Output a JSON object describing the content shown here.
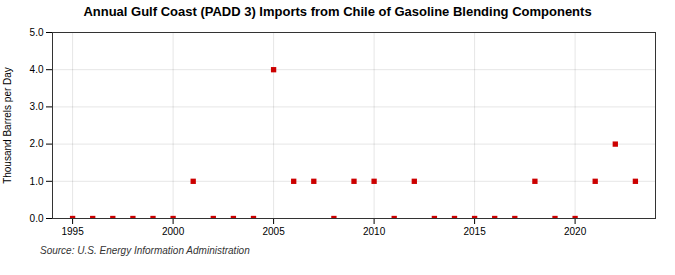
{
  "chart_data": {
    "type": "scatter",
    "title": "Annual Gulf Coast (PADD 3) Imports from Chile of Gasoline Blending Components",
    "ylabel": "Thousand Barrels per Day",
    "source": "Source: U.S. Energy Information Administration",
    "x": [
      1995,
      1996,
      1997,
      1998,
      1999,
      2000,
      2001,
      2002,
      2003,
      2004,
      2005,
      2006,
      2007,
      2008,
      2009,
      2010,
      2011,
      2012,
      2013,
      2014,
      2015,
      2016,
      2017,
      2018,
      2019,
      2020,
      2021,
      2022,
      2023
    ],
    "values": [
      0.0,
      0.0,
      0.0,
      0.0,
      0.0,
      0.0,
      1.0,
      0.0,
      0.0,
      0.0,
      4.0,
      1.0,
      1.0,
      0.0,
      1.0,
      1.0,
      0.0,
      1.0,
      0.0,
      0.0,
      0.0,
      0.0,
      0.0,
      1.0,
      0.0,
      0.0,
      1.0,
      2.0,
      1.0
    ],
    "color": "#cc0000",
    "marker": "square",
    "xlim": [
      1994,
      2024
    ],
    "ylim": [
      0.0,
      5.0
    ],
    "xticks": [
      1995,
      2000,
      2005,
      2010,
      2015,
      2020
    ],
    "yticks": [
      {
        "value": 0,
        "label": "0.0"
      },
      {
        "value": 1,
        "label": "1.0"
      },
      {
        "value": 2,
        "label": "2.0"
      },
      {
        "value": 3,
        "label": "3.0"
      },
      {
        "value": 4,
        "label": "4.0"
      },
      {
        "value": 5,
        "label": "5.0"
      }
    ],
    "grid": true
  }
}
